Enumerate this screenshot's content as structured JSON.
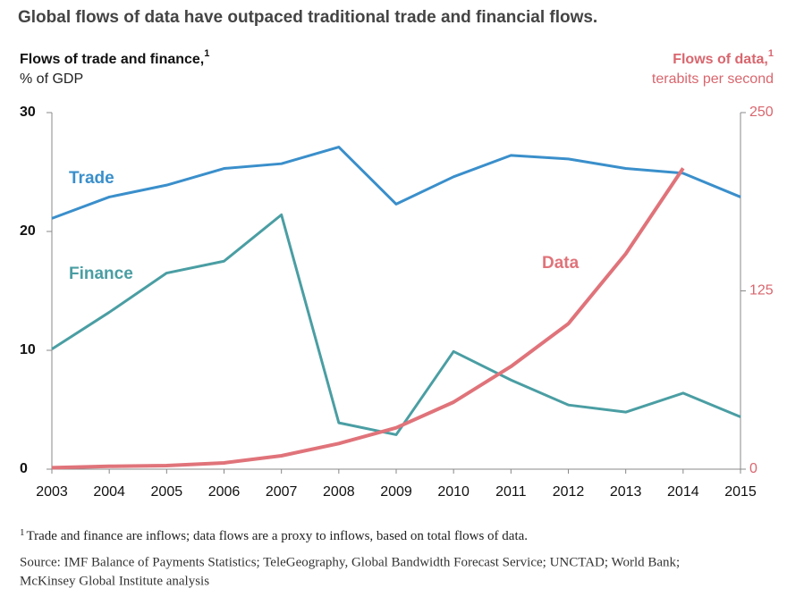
{
  "chart_data": {
    "type": "line",
    "title": "Global flows of data have outpaced traditional trade and financial flows.",
    "y_label": "Flows of trade and finance,",
    "y_label_note": "1",
    "y_unit": "% of GDP",
    "y2_label": "Flows of data,",
    "y2_label_note": "1",
    "y2_unit": "terabits per second",
    "categories": [
      "2003",
      "2004",
      "2005",
      "2006",
      "2007",
      "2008",
      "2009",
      "2010",
      "2011",
      "2012",
      "2013",
      "2014",
      "2015"
    ],
    "series": [
      {
        "name": "Trade",
        "color": "#3a8fcb",
        "values": [
          21.1,
          22.9,
          23.9,
          25.3,
          25.7,
          27.1,
          22.3,
          24.6,
          26.4,
          26.1,
          25.3,
          24.9,
          22.9
        ]
      },
      {
        "name": "Finance",
        "color": "#4a9ea3",
        "values": [
          10.1,
          13.2,
          16.5,
          17.5,
          21.4,
          3.9,
          2.9,
          9.9,
          7.5,
          5.4,
          4.8,
          6.4,
          4.4
        ]
      },
      {
        "name": "Data",
        "color": "#e0737a",
        "axis": "y2",
        "values": [
          1,
          2,
          2.5,
          4.4,
          9.4,
          18,
          29,
          47,
          72,
          102,
          151,
          211,
          null
        ]
      }
    ],
    "ylim": [
      0,
      30
    ],
    "yticks": [
      0,
      10,
      20,
      30
    ],
    "y2lim": [
      0,
      250
    ],
    "y2ticks": [
      0,
      125,
      250
    ],
    "footnote_mark": "1",
    "footnote": "Trade and finance are inflows; data flows are a proxy to inflows, based on total flows of data.",
    "source": [
      "Source: IMF Balance of Payments Statistics; TeleGeography, Global Bandwidth Forecast Service; UNCTAD; World Bank;",
      "McKinsey Global Institute analysis"
    ]
  }
}
